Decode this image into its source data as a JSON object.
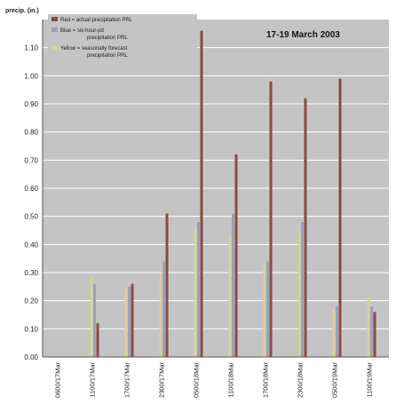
{
  "chart_data": {
    "type": "bar",
    "title": "17-19 March 2003",
    "ylabel": "precip. (in.)",
    "xlabel": "",
    "ylim": [
      0,
      1.2
    ],
    "yticks": [
      "0.00",
      "0.10",
      "0.20",
      "0.30",
      "0.40",
      "0.50",
      "0.60",
      "0.70",
      "0.80",
      "0.90",
      "1.00",
      "1.10"
    ],
    "categories": [
      "0600/17Mar",
      "1100/17Mar",
      "1700/17Mar",
      "2300/17Mar",
      "0500/18Mar",
      "1100/18Mar",
      "1700/18Mar",
      "2300/18Mar",
      "0500/19Mar",
      "1100/19Mar"
    ],
    "series": [
      {
        "name": "Red = actual precipitation PRL",
        "color": "#8a4a45",
        "values": [
          0.0,
          0.12,
          0.26,
          0.51,
          1.16,
          0.72,
          0.98,
          0.92,
          0.99,
          0.16
        ]
      },
      {
        "name": "Blue = six-hour-pd precipitation PRL",
        "color": "#9aa3b5",
        "values": [
          0.0,
          0.26,
          0.25,
          0.34,
          0.48,
          0.51,
          0.34,
          0.48,
          0.18,
          0.18
        ]
      },
      {
        "name": "Yellow = seasonally forecast precipitation PRL",
        "color": "#d8cfa0",
        "values": [
          0.0,
          0.29,
          0.25,
          0.3,
          0.46,
          0.43,
          0.33,
          0.44,
          0.17,
          0.21
        ]
      }
    ],
    "grid": true,
    "legend_position": "top-left",
    "colors": {
      "plot_background": "#c4c4c4",
      "gridline": "#ffffff",
      "axis": "#555555"
    }
  }
}
